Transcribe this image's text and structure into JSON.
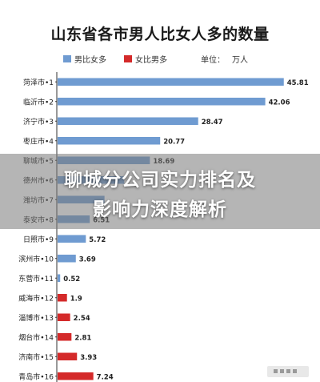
{
  "title": "山东省各市男人比女人多的数量",
  "legend": {
    "items": [
      {
        "label": "男比女多",
        "color": "#6f9bd1"
      },
      {
        "label": "女比男多",
        "color": "#d42a2a"
      }
    ],
    "unit_label": "单位：",
    "unit_value": "万人"
  },
  "overlay": {
    "line1": "聊城分公司实力排名及",
    "line2": "影响力深度解析"
  },
  "chart_data": {
    "type": "bar",
    "orientation": "horizontal",
    "title": "山东省各市男人比女人多的数量",
    "unit": "万人",
    "xlim": [
      0,
      46.5
    ],
    "categories": [
      "菏泽市•1",
      "临沂市•2",
      "济宁市•3",
      "枣庄市•4",
      "聊城市•5",
      "德州市•6",
      "潍坊市•7",
      "泰安市•8",
      "日照市•9",
      "滨州市•10",
      "东营市•11",
      "威海市•12",
      "淄博市•13",
      "烟台市•14",
      "济南市•15",
      "青岛市•16"
    ],
    "values": [
      45.81,
      42.06,
      28.47,
      20.77,
      18.69,
      13.5,
      9.5,
      6.51,
      5.72,
      3.69,
      0.52,
      1.9,
      2.54,
      2.81,
      3.93,
      7.24
    ],
    "value_labels": [
      "45.81",
      "42.06",
      "28.47",
      "20.77",
      "18.69",
      "",
      "",
      "6.51",
      "5.72",
      "3.69",
      "0.52",
      "1.9",
      "2.54",
      "2.81",
      "3.93",
      "7.24"
    ],
    "series_flags": [
      "男比女多",
      "男比女多",
      "男比女多",
      "男比女多",
      "男比女多",
      "男比女多",
      "男比女多",
      "男比女多",
      "男比女多",
      "男比女多",
      "男比女多",
      "女比男多",
      "女比男多",
      "女比男多",
      "女比男多",
      "女比男多"
    ],
    "colors": {
      "男比女多": "#6f9bd1",
      "女比男多": "#d42a2a"
    },
    "grid": false,
    "legend_position": "top"
  }
}
